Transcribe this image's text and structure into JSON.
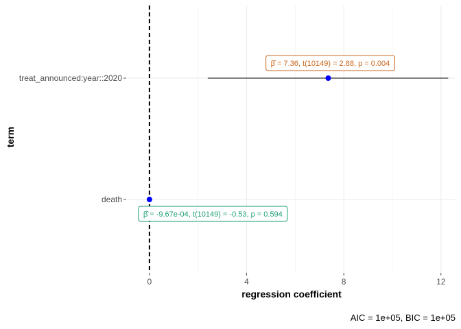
{
  "chart_data": {
    "type": "coefficient-plot",
    "xlabel": "regression coefficient",
    "ylabel": "term",
    "xlim": [
      -0.9,
      12.6
    ],
    "x_ticks": [
      0,
      4,
      8,
      12
    ],
    "grid": true,
    "reference_line_x": 0,
    "caption": "AIC = 1e+05, BIC = 1e+05",
    "terms": [
      {
        "term": "treat_announced:year::2020",
        "estimate": 7.36,
        "ci_low": 2.4,
        "ci_high": 12.3,
        "label_estimate": "7.36",
        "label_t": "t(10149) = 2.88",
        "label_p": "p = 0.004",
        "label_color": "#c8651b"
      },
      {
        "term": "death",
        "estimate": -0.000967,
        "ci_low": -0.0045,
        "ci_high": 0.0026,
        "label_estimate": "-9.67e-04",
        "label_t": "t(10149) = -0.53",
        "label_p": "p = 0.594",
        "label_color": "#1b9e77"
      }
    ],
    "colors": {
      "point": "#0000ff",
      "ci_line": "#000000",
      "grid": "#ebebeb",
      "ref_line": "#000000"
    }
  }
}
